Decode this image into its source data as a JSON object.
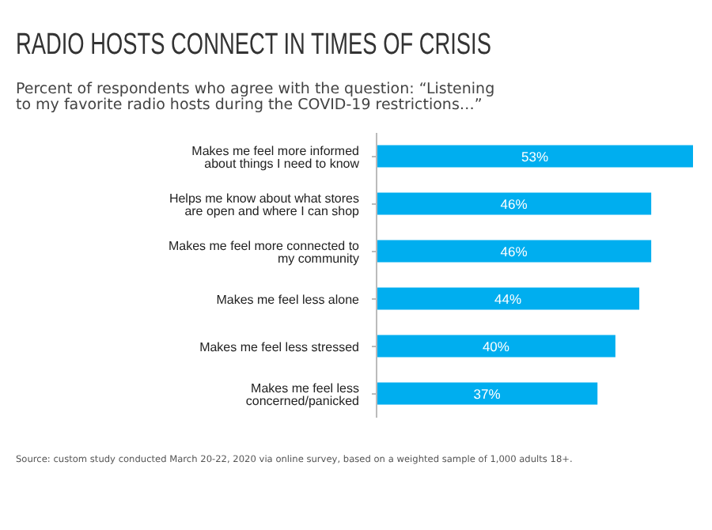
{
  "chart_data": {
    "type": "bar",
    "orientation": "horizontal",
    "title": "RADIO HOSTS CONNECT IN TIMES OF CRISIS",
    "subtitle": "Percent of respondents who agree with the question: “Listening to my favorite radio hosts during the COVID-19 restrictions…”",
    "categories": [
      "Makes me feel more informed about things I need to know",
      "Helps me know about what stores are open and where I can shop",
      "Makes me feel more connected to my community",
      "Makes me feel less alone",
      "Makes me feel less stressed",
      "Makes me feel less concerned/panicked"
    ],
    "values": [
      53,
      46,
      46,
      44,
      40,
      37
    ],
    "color": "#00aeef",
    "value_labels": [
      "53%",
      "46%",
      "46%",
      "44%",
      "40%",
      "37%"
    ],
    "annotations": [
      "Source: custom study conducted March 20-22, 2020 via online survey, based on a weighted sample of 1,000 adults 18+."
    ]
  }
}
